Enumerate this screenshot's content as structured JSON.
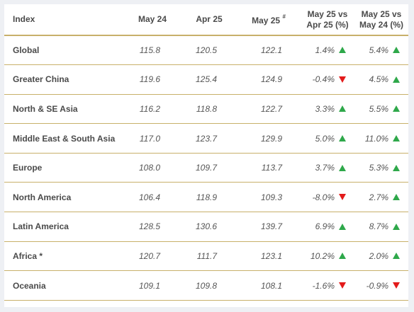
{
  "table": {
    "headers": {
      "index": "Index",
      "may24": "May 24",
      "apr25": "Apr 25",
      "may25": "May 25",
      "may25_mark": "#",
      "vs_apr_line1": "May 25 vs",
      "vs_apr_line2": "Apr 25 (%)",
      "vs_may_line1": "May 25 vs",
      "vs_may_line2": "May 24 (%)"
    },
    "rows": [
      {
        "name": "Global",
        "may24": "115.8",
        "apr25": "120.5",
        "may25": "122.1",
        "vs_apr": "1.4%",
        "vs_apr_dir": "up",
        "vs_may": "5.4%",
        "vs_may_dir": "up"
      },
      {
        "name": "Greater China",
        "may24": "119.6",
        "apr25": "125.4",
        "may25": "124.9",
        "vs_apr": "-0.4%",
        "vs_apr_dir": "down",
        "vs_may": "4.5%",
        "vs_may_dir": "up"
      },
      {
        "name": "North & SE Asia",
        "may24": "116.2",
        "apr25": "118.8",
        "may25": "122.7",
        "vs_apr": "3.3%",
        "vs_apr_dir": "up",
        "vs_may": "5.5%",
        "vs_may_dir": "up"
      },
      {
        "name": "Middle East & South Asia",
        "may24": "117.0",
        "apr25": "123.7",
        "may25": "129.9",
        "vs_apr": "5.0%",
        "vs_apr_dir": "up",
        "vs_may": "11.0%",
        "vs_may_dir": "up"
      },
      {
        "name": "Europe",
        "may24": "108.0",
        "apr25": "109.7",
        "may25": "113.7",
        "vs_apr": "3.7%",
        "vs_apr_dir": "up",
        "vs_may": "5.3%",
        "vs_may_dir": "up"
      },
      {
        "name": "North America",
        "may24": "106.4",
        "apr25": "118.9",
        "may25": "109.3",
        "vs_apr": "-8.0%",
        "vs_apr_dir": "down",
        "vs_may": "2.7%",
        "vs_may_dir": "up"
      },
      {
        "name": "Latin America",
        "may24": "128.5",
        "apr25": "130.6",
        "may25": "139.7",
        "vs_apr": "6.9%",
        "vs_apr_dir": "up",
        "vs_may": "8.7%",
        "vs_may_dir": "up"
      },
      {
        "name": "Africa *",
        "may24": "120.7",
        "apr25": "111.7",
        "may25": "123.1",
        "vs_apr": "10.2%",
        "vs_apr_dir": "up",
        "vs_may": "2.0%",
        "vs_may_dir": "up"
      },
      {
        "name": "Oceania",
        "may24": "109.1",
        "apr25": "109.8",
        "may25": "108.1",
        "vs_apr": "-1.6%",
        "vs_apr_dir": "down",
        "vs_may": "-0.9%",
        "vs_may_dir": "down"
      }
    ],
    "colors": {
      "up": "#2ea84a",
      "down": "#e31b1b",
      "rule": "#c8b06a"
    },
    "icons": {
      "up": "triangle-up-icon",
      "down": "triangle-down-icon"
    }
  }
}
